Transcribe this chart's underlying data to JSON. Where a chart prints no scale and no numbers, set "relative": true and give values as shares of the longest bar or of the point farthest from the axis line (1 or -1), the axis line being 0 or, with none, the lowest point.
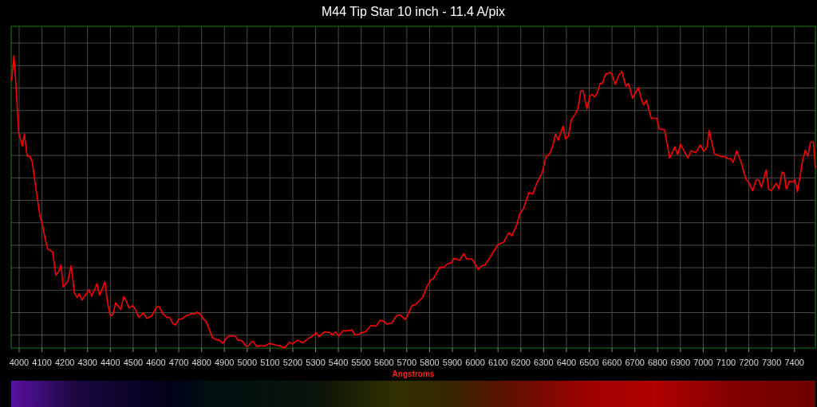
{
  "chart_data": {
    "type": "line",
    "title": "M44 Tip Star  10 inch - 11.4 A/pix",
    "xlabel": "Angstroms",
    "relative": true,
    "grid": true,
    "xlim": [
      3965,
      7492
    ],
    "xticks": [
      4000,
      4100,
      4200,
      4300,
      4400,
      4500,
      4600,
      4700,
      4800,
      4900,
      5000,
      5100,
      5200,
      5300,
      5400,
      5500,
      5600,
      5700,
      5800,
      5900,
      6000,
      6100,
      6200,
      6300,
      6400,
      6500,
      6600,
      6700,
      6800,
      6900,
      7000,
      7100,
      7200,
      7300,
      7400
    ],
    "series": [
      {
        "color": "#ff0000",
        "x": [
          3967,
          3977,
          3984,
          3998,
          4014,
          4023,
          4035,
          4047,
          4058,
          4070,
          4091,
          4103,
          4117,
          4126,
          4147,
          4161,
          4172,
          4184,
          4193,
          4213,
          4228,
          4242,
          4254,
          4263,
          4275,
          4307,
          4318,
          4341,
          4353,
          4376,
          4388,
          4400,
          4411,
          4423,
          4446,
          4458,
          4466,
          4481,
          4499,
          4510,
          4524,
          4545,
          4559,
          4580,
          4604,
          4615,
          4629,
          4648,
          4660,
          4674,
          4685,
          4699,
          4714,
          4732,
          4746,
          4755,
          4767,
          4781,
          4796,
          4808,
          4819,
          4848,
          4862,
          4878,
          4893,
          4907,
          4918,
          4948,
          4959,
          4977,
          4994,
          5006,
          5017,
          5029,
          5041,
          5058,
          5076,
          5099,
          5122,
          5146,
          5163,
          5186,
          5198,
          5221,
          5245,
          5262,
          5286,
          5303,
          5315,
          5338,
          5361,
          5375,
          5387,
          5402,
          5420,
          5443,
          5460,
          5472,
          5490,
          5503,
          5519,
          5542,
          5565,
          5583,
          5600,
          5612,
          5635,
          5653,
          5670,
          5693,
          5705,
          5723,
          5740,
          5769,
          5787,
          5804,
          5816,
          5845,
          5862,
          5874,
          5898,
          5907,
          5932,
          5950,
          5962,
          5985,
          5997,
          6014,
          6026,
          6043,
          6061,
          6078,
          6101,
          6125,
          6148,
          6160,
          6183,
          6195,
          6212,
          6235,
          6253,
          6270,
          6294,
          6311,
          6326,
          6340,
          6352,
          6364,
          6385,
          6396,
          6408,
          6422,
          6439,
          6451,
          6463,
          6474,
          6490,
          6503,
          6513,
          6524,
          6536,
          6548,
          6559,
          6571,
          6591,
          6599,
          6614,
          6629,
          6643,
          6661,
          6672,
          6690,
          6716,
          6731,
          6739,
          6751,
          6772,
          6797,
          6807,
          6830,
          6853,
          6876,
          6888,
          6900,
          6933,
          6947,
          6968,
          6987,
          7003,
          7017,
          7026,
          7049,
          7080,
          7098,
          7108,
          7122,
          7131,
          7147,
          7166,
          7186,
          7201,
          7217,
          7232,
          7244,
          7255,
          7276,
          7287,
          7299,
          7320,
          7332,
          7346,
          7355,
          7364,
          7378,
          7392,
          7402,
          7413,
          7436,
          7448,
          7459,
          7471,
          7483,
          7492
        ],
        "values": [
          0.914,
          1.0,
          0.927,
          0.736,
          0.691,
          0.732,
          0.657,
          0.655,
          0.636,
          0.564,
          0.455,
          0.418,
          0.364,
          0.338,
          0.329,
          0.25,
          0.259,
          0.284,
          0.209,
          0.227,
          0.282,
          0.191,
          0.173,
          0.186,
          0.164,
          0.2,
          0.177,
          0.22,
          0.18,
          0.227,
          0.155,
          0.111,
          0.114,
          0.155,
          0.132,
          0.175,
          0.168,
          0.138,
          0.145,
          0.132,
          0.105,
          0.12,
          0.102,
          0.109,
          0.141,
          0.141,
          0.118,
          0.105,
          0.105,
          0.084,
          0.079,
          0.098,
          0.1,
          0.111,
          0.114,
          0.118,
          0.116,
          0.123,
          0.114,
          0.098,
          0.093,
          0.035,
          0.029,
          0.027,
          0.016,
          0.032,
          0.041,
          0.041,
          0.027,
          0.025,
          0.007,
          0.007,
          0.021,
          0.021,
          0.005,
          0.009,
          0.007,
          0.016,
          0.011,
          0.007,
          0,
          0.02,
          0.014,
          0.027,
          0.018,
          0.029,
          0.041,
          0.053,
          0.039,
          0.055,
          0.053,
          0.045,
          0.055,
          0.041,
          0.059,
          0.059,
          0.062,
          0.045,
          0.047,
          0.053,
          0.055,
          0.077,
          0.075,
          0.095,
          0.091,
          0.082,
          0.086,
          0.109,
          0.114,
          0.098,
          0.114,
          0.145,
          0.15,
          0.173,
          0.209,
          0.232,
          0.236,
          0.277,
          0.275,
          0.286,
          0.293,
          0.307,
          0.3,
          0.323,
          0.305,
          0.305,
          0.291,
          0.268,
          0.28,
          0.284,
          0.305,
          0.327,
          0.355,
          0.362,
          0.395,
          0.384,
          0.423,
          0.459,
          0.477,
          0.532,
          0.527,
          0.564,
          0.6,
          0.655,
          0.664,
          0.691,
          0.732,
          0.711,
          0.759,
          0.716,
          0.723,
          0.782,
          0.8,
          0.82,
          0.88,
          0.88,
          0.818,
          0.862,
          0.868,
          0.859,
          0.875,
          0.905,
          0.907,
          0.936,
          0.943,
          0.938,
          0.902,
          0.932,
          0.947,
          0.895,
          0.905,
          0.855,
          0.891,
          0.845,
          0.832,
          0.848,
          0.786,
          0.786,
          0.75,
          0.747,
          0.65,
          0.689,
          0.662,
          0.698,
          0.65,
          0.675,
          0.668,
          0.695,
          0.673,
          0.689,
          0.744,
          0.665,
          0.655,
          0.655,
          0.647,
          0.647,
          0.635,
          0.675,
          0.636,
          0.58,
          0.565,
          0.538,
          0.575,
          0.575,
          0.55,
          0.609,
          0.544,
          0.538,
          0.564,
          0.544,
          0.602,
          0.598,
          0.544,
          0.571,
          0.568,
          0.575,
          0.535,
          0.641,
          0.677,
          0.656,
          0.705,
          0.705,
          0.614
        ]
      }
    ]
  }
}
